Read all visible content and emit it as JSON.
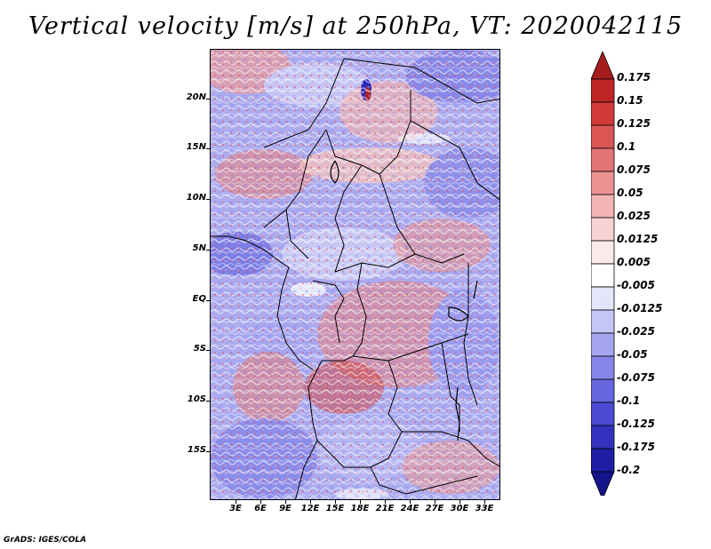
{
  "title": "Vertical velocity [m/s] at 250hPa, VT: 2020042115",
  "map": {
    "lat_labels": [
      "20N",
      "15N",
      "10N",
      "5N",
      "EQ",
      "5S",
      "10S",
      "15S"
    ],
    "lon_labels": [
      "3E",
      "6E",
      "9E",
      "12E",
      "15E",
      "18E",
      "21E",
      "24E",
      "27E",
      "30E",
      "33E"
    ]
  },
  "colorbar": {
    "labels": [
      "0.175",
      "0.15",
      "0.125",
      "0.1",
      "0.075",
      "0.05",
      "0.025",
      "0.0125",
      "0.005",
      "-0.005",
      "-0.0125",
      "-0.025",
      "-0.05",
      "-0.075",
      "-0.1",
      "-0.125",
      "-0.175",
      "-0.2"
    ],
    "colors": [
      "#a51d1d",
      "#c02525",
      "#d23a3a",
      "#dc5555",
      "#e57474",
      "#ec9393",
      "#f3b4b4",
      "#f8d2d2",
      "#fce9e9",
      "#ffffff",
      "#e4e4fb",
      "#c6c6f6",
      "#a6a6f0",
      "#8686ea",
      "#6666e0",
      "#4a4ad2",
      "#3232be",
      "#1e1ea4",
      "#14148a"
    ]
  },
  "credit": "GrADS: IGES/COLA"
}
